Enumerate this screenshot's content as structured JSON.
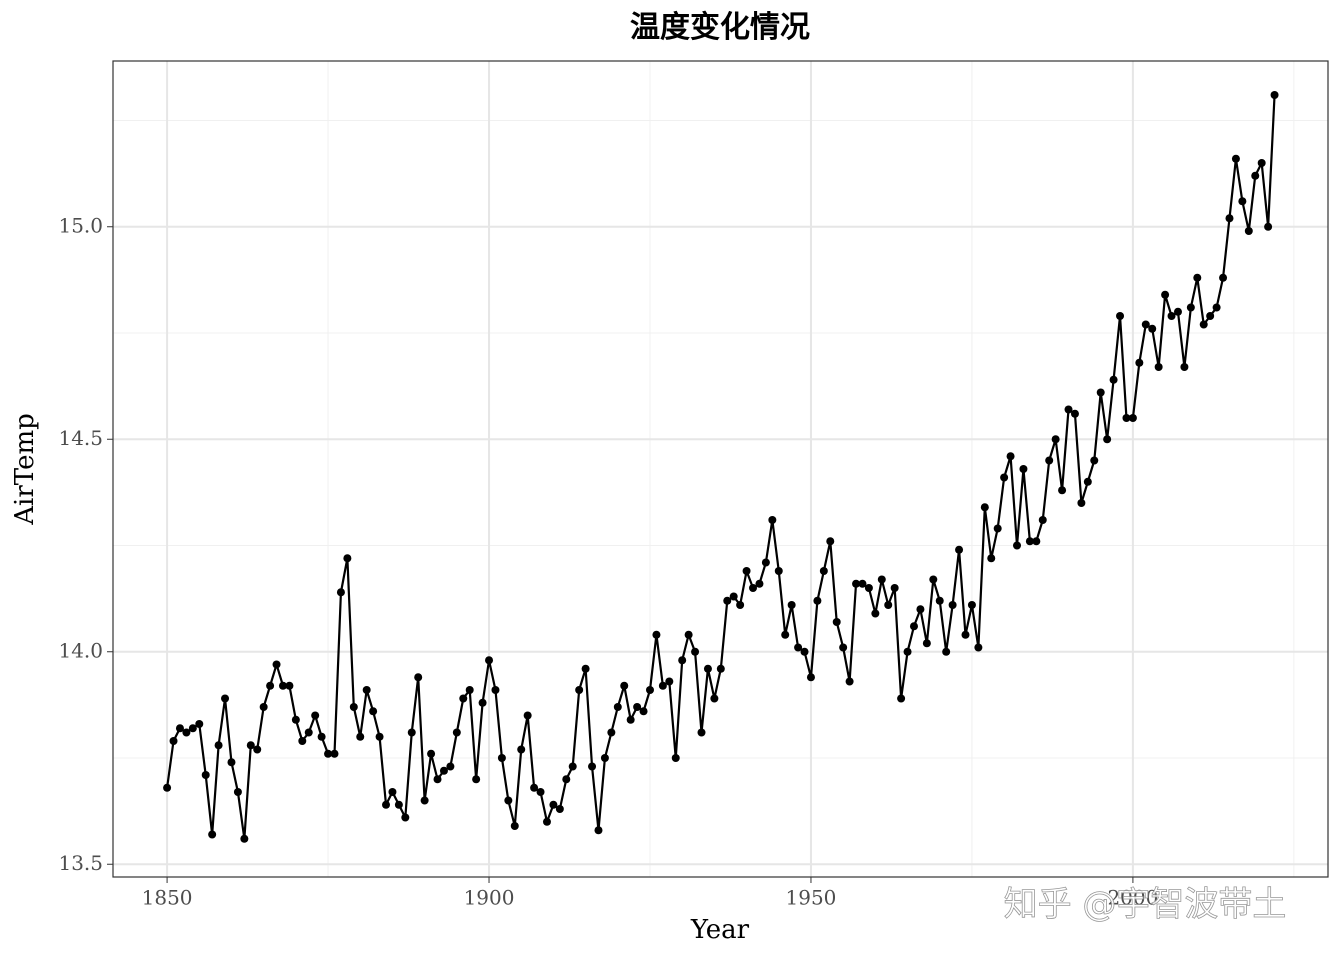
{
  "chart_data": {
    "type": "line",
    "title": "温度变化情况",
    "x_label": "Year",
    "y_label": "AirTemp",
    "watermark": "知乎 @宇智波带土",
    "x": [
      1850,
      1851,
      1852,
      1853,
      1854,
      1855,
      1856,
      1857,
      1858,
      1859,
      1860,
      1861,
      1862,
      1863,
      1864,
      1865,
      1866,
      1867,
      1868,
      1869,
      1870,
      1871,
      1872,
      1873,
      1874,
      1875,
      1876,
      1877,
      1878,
      1879,
      1880,
      1881,
      1882,
      1883,
      1884,
      1885,
      1886,
      1887,
      1888,
      1889,
      1890,
      1891,
      1892,
      1893,
      1894,
      1895,
      1896,
      1897,
      1898,
      1899,
      1900,
      1901,
      1902,
      1903,
      1904,
      1905,
      1906,
      1907,
      1908,
      1909,
      1910,
      1911,
      1912,
      1913,
      1914,
      1915,
      1916,
      1917,
      1918,
      1919,
      1920,
      1921,
      1922,
      1923,
      1924,
      1925,
      1926,
      1927,
      1928,
      1929,
      1930,
      1931,
      1932,
      1933,
      1934,
      1935,
      1936,
      1937,
      1938,
      1939,
      1940,
      1941,
      1942,
      1943,
      1944,
      1945,
      1946,
      1947,
      1948,
      1949,
      1950,
      1951,
      1952,
      1953,
      1954,
      1955,
      1956,
      1957,
      1958,
      1959,
      1960,
      1961,
      1962,
      1963,
      1964,
      1965,
      1966,
      1967,
      1968,
      1969,
      1970,
      1971,
      1972,
      1973,
      1974,
      1975,
      1976,
      1977,
      1978,
      1979,
      1980,
      1981,
      1982,
      1983,
      1984,
      1985,
      1986,
      1987,
      1988,
      1989,
      1990,
      1991,
      1992,
      1993,
      1994,
      1995,
      1996,
      1997,
      1998,
      1999,
      2000,
      2001,
      2002,
      2003,
      2004,
      2005,
      2006,
      2007,
      2008,
      2009,
      2010,
      2011,
      2012,
      2013,
      2014,
      2015,
      2016,
      2017,
      2018,
      2019,
      2020,
      2021,
      2022
    ],
    "series": [
      {
        "name": "AirTemp",
        "color": "#000000",
        "values": [
          13.68,
          13.79,
          13.82,
          13.81,
          13.82,
          13.83,
          13.71,
          13.57,
          13.78,
          13.89,
          13.74,
          13.67,
          13.56,
          13.78,
          13.77,
          13.87,
          13.92,
          13.97,
          13.92,
          13.92,
          13.84,
          13.79,
          13.81,
          13.85,
          13.8,
          13.76,
          13.76,
          14.14,
          14.22,
          13.87,
          13.8,
          13.91,
          13.86,
          13.8,
          13.64,
          13.67,
          13.64,
          13.61,
          13.81,
          13.94,
          13.65,
          13.76,
          13.7,
          13.72,
          13.73,
          13.81,
          13.89,
          13.91,
          13.7,
          13.88,
          13.98,
          13.91,
          13.75,
          13.65,
          13.59,
          13.77,
          13.85,
          13.68,
          13.67,
          13.6,
          13.64,
          13.63,
          13.7,
          13.73,
          13.91,
          13.96,
          13.73,
          13.58,
          13.75,
          13.81,
          13.87,
          13.92,
          13.84,
          13.87,
          13.86,
          13.91,
          14.04,
          13.92,
          13.93,
          13.75,
          13.98,
          14.04,
          14.0,
          13.81,
          13.96,
          13.89,
          13.96,
          14.12,
          14.13,
          14.11,
          14.19,
          14.15,
          14.16,
          14.21,
          14.31,
          14.19,
          14.04,
          14.11,
          14.01,
          14.0,
          13.94,
          14.12,
          14.19,
          14.26,
          14.07,
          14.01,
          13.93,
          14.16,
          14.16,
          14.15,
          14.09,
          14.17,
          14.11,
          14.15,
          13.89,
          14.0,
          14.06,
          14.1,
          14.02,
          14.17,
          14.12,
          14.0,
          14.11,
          14.24,
          14.04,
          14.11,
          14.01,
          14.34,
          14.22,
          14.29,
          14.41,
          14.46,
          14.25,
          14.43,
          14.26,
          14.26,
          14.31,
          14.45,
          14.5,
          14.38,
          14.57,
          14.56,
          14.35,
          14.4,
          14.45,
          14.61,
          14.5,
          14.64,
          14.79,
          14.55,
          14.55,
          14.68,
          14.77,
          14.76,
          14.67,
          14.84,
          14.79,
          14.8,
          14.67,
          14.81,
          14.88,
          14.77,
          14.79,
          14.81,
          14.88,
          15.02,
          15.16,
          15.06,
          14.99,
          15.12,
          15.15,
          15.0,
          15.31
        ]
      }
    ],
    "xlim": [
      1841.6,
      2030.3
    ],
    "ylim": [
      13.47,
      15.39
    ],
    "xticks": [
      1850,
      1900,
      1950,
      2000
    ],
    "yticks": [
      {
        "value": 13.5,
        "label": "13.5"
      },
      {
        "value": 14,
        "label": "14.0"
      },
      14.5,
      {
        "value": 15,
        "label": "15.0"
      }
    ],
    "minor_xticks": [
      1875,
      1925,
      1975,
      2025
    ],
    "minor_yticks": [
      13.75,
      14.25,
      14.75,
      15.25
    ],
    "grid": true,
    "markers": true
  }
}
